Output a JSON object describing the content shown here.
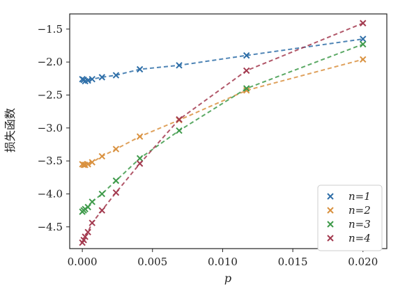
{
  "chart_data": {
    "type": "line",
    "xlabel": "p",
    "ylabel": "损失函数",
    "xlim": [
      -0.0009,
      0.0217
    ],
    "ylim": [
      -4.83,
      -1.27
    ],
    "xticks": [
      0.0,
      0.005,
      0.01,
      0.015,
      0.02
    ],
    "xtick_labels": [
      "0.000",
      "0.005",
      "0.010",
      "0.015",
      "0.020"
    ],
    "yticks": [
      -1.5,
      -2.0,
      -2.5,
      -3.0,
      -3.5,
      -4.0,
      -4.5
    ],
    "ytick_labels": [
      "−1.5",
      "−2.0",
      "−2.5",
      "−3.0",
      "−3.5",
      "−4.0",
      "−4.5"
    ],
    "grid": false,
    "legend_position": "bottom-right",
    "marker": "x",
    "line_style": "dashed",
    "series": [
      {
        "name": "n=1",
        "legend_label": "n=1",
        "color": "#2f6fa8",
        "x": [
          0.0,
          0.0001,
          0.0002,
          0.0004,
          0.0007,
          0.0014,
          0.0024,
          0.0041,
          0.0069,
          0.0117,
          0.02
        ],
        "y": [
          -2.26,
          -2.27,
          -2.29,
          -2.28,
          -2.26,
          -2.23,
          -2.2,
          -2.11,
          -2.05,
          -1.9,
          -1.65
        ]
      },
      {
        "name": "n=2",
        "legend_label": "n=2",
        "color": "#d9913f",
        "x": [
          0.0,
          0.0001,
          0.0002,
          0.0004,
          0.0007,
          0.0014,
          0.0024,
          0.0041,
          0.0069,
          0.0117,
          0.02
        ],
        "y": [
          -3.55,
          -3.56,
          -3.56,
          -3.55,
          -3.52,
          -3.43,
          -3.32,
          -3.13,
          -2.88,
          -2.43,
          -1.96
        ]
      },
      {
        "name": "n=3",
        "legend_label": "n=3",
        "color": "#3e9a4a",
        "x": [
          0.0,
          0.0001,
          0.0002,
          0.0004,
          0.0007,
          0.0014,
          0.0024,
          0.0041,
          0.0069,
          0.0117,
          0.02
        ],
        "y": [
          -4.27,
          -4.25,
          -4.23,
          -4.2,
          -4.12,
          -4.0,
          -3.8,
          -3.46,
          -3.04,
          -2.4,
          -1.73
        ]
      },
      {
        "name": "n=4",
        "legend_label": "n=4",
        "color": "#a33a4f",
        "x": [
          0.0,
          0.0001,
          0.0002,
          0.0004,
          0.0007,
          0.0014,
          0.0024,
          0.0041,
          0.0069,
          0.0117,
          0.02
        ],
        "y": [
          -4.74,
          -4.7,
          -4.65,
          -4.58,
          -4.44,
          -4.25,
          -3.98,
          -3.54,
          -2.87,
          -2.13,
          -1.41
        ]
      }
    ]
  }
}
